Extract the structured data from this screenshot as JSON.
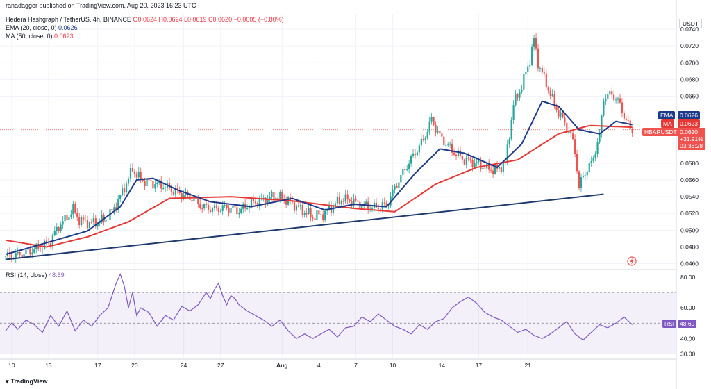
{
  "header": {
    "published": "ranadagger published on TradingView.com, Aug 20, 2023 16:23 UTC",
    "symbol": "Hedera Hashgraph / TetherUS, 4h, BINANCE",
    "ohlc": "O0.0624 H0.0624 L0.0619 C0.0620 −0.0005 (−0.80%)",
    "ema_label": "EMA (20, close, 0)",
    "ema_value": "0.0626",
    "ma_label": "MA (50, close, 0)",
    "ma_value": "0.0623",
    "rsi_label": "RSI (14, close)",
    "rsi_value": "48.69"
  },
  "price_axis": {
    "currency": "USDT",
    "ticks": [
      "0.0740",
      "0.0720",
      "0.0700",
      "0.0680",
      "0.0660",
      "0.0580",
      "0.0560",
      "0.0540",
      "0.0520",
      "0.0500",
      "0.0480",
      "0.0460"
    ]
  },
  "rsi_axis": {
    "ticks": [
      "80.00",
      "60.00",
      "40.00",
      "30.00"
    ]
  },
  "time_axis": {
    "labels": [
      "10",
      "13",
      "17",
      "20",
      "24",
      "27",
      "Aug",
      "4",
      "7",
      "10",
      "14",
      "17",
      "21"
    ]
  },
  "tags": {
    "ema": {
      "label": "EMA",
      "value": "0.0626"
    },
    "ma": {
      "label": "MA",
      "value": "0.0623"
    },
    "price": {
      "symbol": "HBARUSDT",
      "value": "0.0620",
      "change": "+31.91%",
      "countdown": "03:36:28"
    },
    "rsi": {
      "label": "RSI",
      "value": "48.69"
    }
  },
  "logo": "TradingView",
  "colors": {
    "up": "#26a69a",
    "down": "#ef5350",
    "ema": "#1e3a8a",
    "ma": "#e53935",
    "rsi": "#7e57c2",
    "trend": "#1f3a6d"
  },
  "chart_data": {
    "type": "candlestick",
    "title": "Hedera Hashgraph / TetherUS, 4h, BINANCE",
    "ylim": [
      0.0453,
      0.0755
    ],
    "rsi_ylim": [
      27,
      85
    ],
    "rsi_levels": [
      70,
      50,
      30
    ],
    "candles_per_day": 6,
    "start_day": 9.5,
    "last_price": 0.062,
    "close_path": [
      [
        0,
        0.0469
      ],
      [
        6,
        0.047
      ],
      [
        12,
        0.0475
      ],
      [
        18,
        0.0481
      ],
      [
        22,
        0.0487
      ],
      [
        26,
        0.0505
      ],
      [
        30,
        0.0515
      ],
      [
        33,
        0.0525
      ],
      [
        36,
        0.0512
      ],
      [
        42,
        0.0508
      ],
      [
        48,
        0.0512
      ],
      [
        52,
        0.0522
      ],
      [
        56,
        0.054
      ],
      [
        60,
        0.0562
      ],
      [
        62,
        0.0573
      ],
      [
        66,
        0.056
      ],
      [
        72,
        0.0556
      ],
      [
        78,
        0.0552
      ],
      [
        84,
        0.0545
      ],
      [
        90,
        0.054
      ],
      [
        96,
        0.0528
      ],
      [
        102,
        0.0525
      ],
      [
        108,
        0.0527
      ],
      [
        114,
        0.0523
      ],
      [
        120,
        0.0532
      ],
      [
        126,
        0.0536
      ],
      [
        132,
        0.0541
      ],
      [
        138,
        0.0535
      ],
      [
        144,
        0.0525
      ],
      [
        150,
        0.0516
      ],
      [
        156,
        0.052
      ],
      [
        160,
        0.053
      ],
      [
        164,
        0.0537
      ],
      [
        168,
        0.0536
      ],
      [
        174,
        0.053
      ],
      [
        180,
        0.0527
      ],
      [
        186,
        0.053
      ],
      [
        192,
        0.056
      ],
      [
        198,
        0.0585
      ],
      [
        204,
        0.0608
      ],
      [
        208,
        0.0632
      ],
      [
        212,
        0.0612
      ],
      [
        218,
        0.0595
      ],
      [
        224,
        0.0584
      ],
      [
        230,
        0.058
      ],
      [
        236,
        0.0573
      ],
      [
        240,
        0.0572
      ],
      [
        244,
        0.058
      ],
      [
        248,
        0.065
      ],
      [
        252,
        0.0672
      ],
      [
        256,
        0.0704
      ],
      [
        258,
        0.0728
      ],
      [
        260,
        0.07
      ],
      [
        264,
        0.0675
      ],
      [
        268,
        0.065
      ],
      [
        272,
        0.0632
      ],
      [
        276,
        0.0613
      ],
      [
        278,
        0.0596
      ],
      [
        280,
        0.055
      ],
      [
        282,
        0.0565
      ],
      [
        286,
        0.058
      ],
      [
        290,
        0.0612
      ],
      [
        292,
        0.0658
      ],
      [
        296,
        0.0663
      ],
      [
        300,
        0.065
      ],
      [
        303,
        0.063
      ],
      [
        305,
        0.0622
      ],
      [
        306,
        0.062
      ]
    ],
    "ema_path": [
      [
        0,
        0.0471
      ],
      [
        40,
        0.0499
      ],
      [
        56,
        0.0528
      ],
      [
        64,
        0.056
      ],
      [
        72,
        0.0562
      ],
      [
        84,
        0.0548
      ],
      [
        100,
        0.0534
      ],
      [
        120,
        0.0528
      ],
      [
        140,
        0.0538
      ],
      [
        156,
        0.0524
      ],
      [
        170,
        0.0531
      ],
      [
        186,
        0.0528
      ],
      [
        200,
        0.0568
      ],
      [
        212,
        0.0597
      ],
      [
        224,
        0.0592
      ],
      [
        240,
        0.0575
      ],
      [
        252,
        0.0603
      ],
      [
        262,
        0.0654
      ],
      [
        270,
        0.0648
      ],
      [
        280,
        0.062
      ],
      [
        290,
        0.0615
      ],
      [
        298,
        0.063
      ],
      [
        306,
        0.0626
      ]
    ],
    "ma_path": [
      [
        0,
        0.0488
      ],
      [
        20,
        0.048
      ],
      [
        40,
        0.0492
      ],
      [
        60,
        0.051
      ],
      [
        80,
        0.0538
      ],
      [
        110,
        0.054
      ],
      [
        140,
        0.0535
      ],
      [
        170,
        0.0526
      ],
      [
        190,
        0.0522
      ],
      [
        210,
        0.0555
      ],
      [
        230,
        0.0575
      ],
      [
        250,
        0.0584
      ],
      [
        270,
        0.0615
      ],
      [
        285,
        0.0625
      ],
      [
        306,
        0.0623
      ]
    ],
    "trendline": {
      "from": {
        "bar": 0,
        "price": 0.0465
      },
      "to": {
        "bar": 292,
        "price": 0.0543
      }
    },
    "rsi_path": [
      [
        0,
        45
      ],
      [
        3,
        50
      ],
      [
        6,
        46
      ],
      [
        10,
        52
      ],
      [
        14,
        49
      ],
      [
        18,
        44
      ],
      [
        22,
        55
      ],
      [
        26,
        48
      ],
      [
        30,
        58
      ],
      [
        34,
        45
      ],
      [
        38,
        52
      ],
      [
        42,
        48
      ],
      [
        46,
        55
      ],
      [
        50,
        60
      ],
      [
        54,
        76
      ],
      [
        56,
        82
      ],
      [
        58,
        74
      ],
      [
        60,
        60
      ],
      [
        62,
        70
      ],
      [
        64,
        55
      ],
      [
        66,
        60
      ],
      [
        70,
        57
      ],
      [
        74,
        48
      ],
      [
        78,
        55
      ],
      [
        82,
        52
      ],
      [
        86,
        61
      ],
      [
        90,
        58
      ],
      [
        94,
        62
      ],
      [
        98,
        70
      ],
      [
        100,
        66
      ],
      [
        102,
        72
      ],
      [
        104,
        76
      ],
      [
        106,
        68
      ],
      [
        108,
        62
      ],
      [
        110,
        68
      ],
      [
        112,
        66
      ],
      [
        114,
        62
      ],
      [
        118,
        58
      ],
      [
        122,
        55
      ],
      [
        126,
        52
      ],
      [
        130,
        48
      ],
      [
        134,
        52
      ],
      [
        138,
        45
      ],
      [
        142,
        40
      ],
      [
        146,
        43
      ],
      [
        150,
        40
      ],
      [
        154,
        43
      ],
      [
        158,
        46
      ],
      [
        162,
        41
      ],
      [
        166,
        47
      ],
      [
        170,
        48
      ],
      [
        174,
        54
      ],
      [
        178,
        51
      ],
      [
        182,
        56
      ],
      [
        186,
        52
      ],
      [
        190,
        48
      ],
      [
        194,
        46
      ],
      [
        198,
        43
      ],
      [
        202,
        49
      ],
      [
        206,
        46
      ],
      [
        210,
        51
      ],
      [
        214,
        53
      ],
      [
        218,
        60
      ],
      [
        222,
        64
      ],
      [
        226,
        67
      ],
      [
        230,
        63
      ],
      [
        234,
        57
      ],
      [
        238,
        54
      ],
      [
        242,
        52
      ],
      [
        246,
        48
      ],
      [
        250,
        44
      ],
      [
        254,
        46
      ],
      [
        258,
        42
      ],
      [
        262,
        40
      ],
      [
        266,
        43
      ],
      [
        270,
        47
      ],
      [
        274,
        51
      ],
      [
        278,
        43
      ],
      [
        282,
        39
      ],
      [
        286,
        44
      ],
      [
        290,
        49
      ],
      [
        294,
        47
      ],
      [
        298,
        50
      ],
      [
        302,
        54
      ],
      [
        306,
        49
      ]
    ],
    "price_axis_ticks": [
      0.074,
      0.072,
      0.07,
      0.068,
      0.066,
      0.058,
      0.056,
      0.054,
      0.052,
      0.05,
      0.048,
      0.046
    ],
    "time_labels": [
      "10",
      "13",
      "17",
      "20",
      "24",
      "27",
      "Aug",
      "4",
      "7",
      "10",
      "14",
      "17",
      "21"
    ],
    "time_label_days": [
      10,
      13,
      17,
      20,
      24,
      27,
      32,
      35,
      38,
      41,
      45,
      48,
      52
    ]
  }
}
